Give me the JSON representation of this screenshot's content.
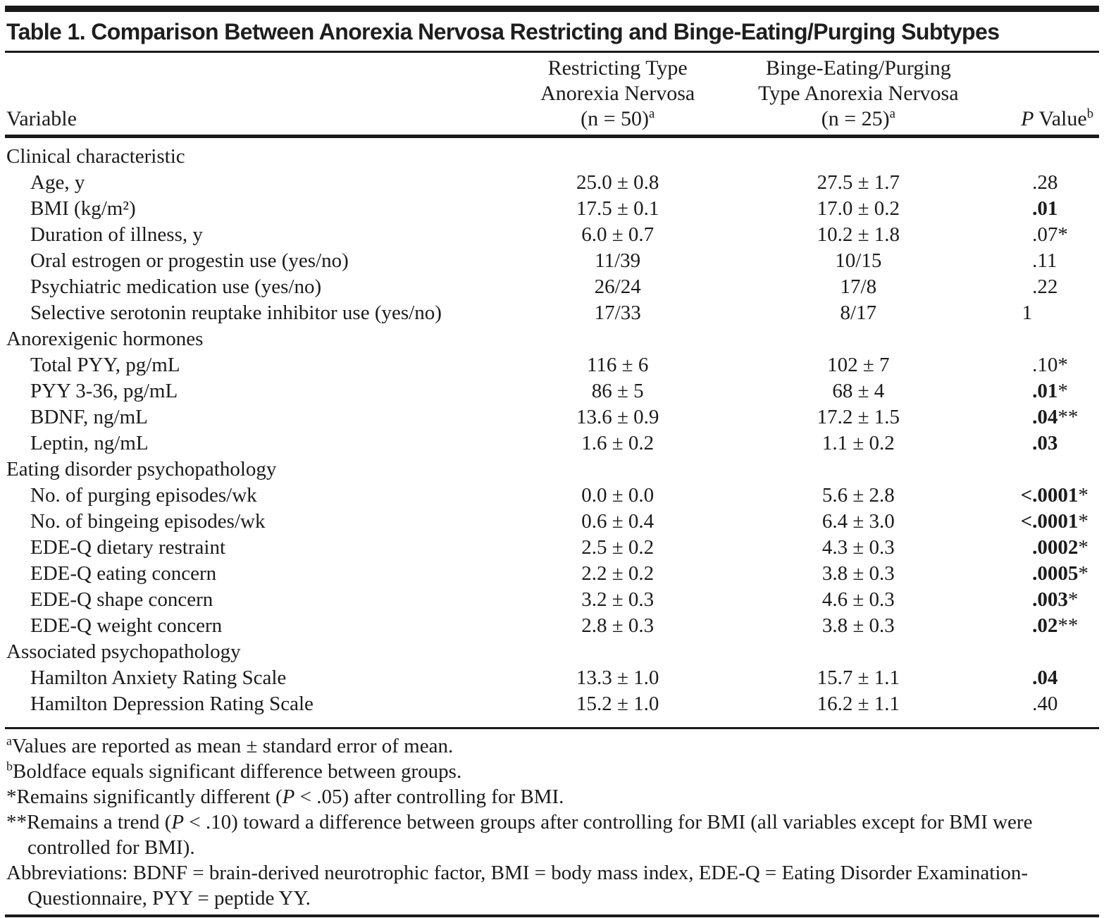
{
  "title": "Table 1. Comparison Between Anorexia Nervosa Restricting and Binge-Eating/Purging Subtypes",
  "header": {
    "variable": "Variable",
    "col2": {
      "line1": "Restricting Type",
      "line2": "Anorexia Nervosa",
      "n": "(n = 50)",
      "sup": "a"
    },
    "col3": {
      "line1": "Binge-Eating/Purging",
      "line2": "Type Anorexia Nervosa",
      "n": "(n = 25)",
      "sup": "a"
    },
    "p": {
      "italic": "P",
      "rest": " Value",
      "sup": "b"
    }
  },
  "rows": [
    {
      "type": "section",
      "label": "Clinical characteristic",
      "c1": "",
      "c2": "",
      "p": {
        "pre": "",
        "val": "",
        "stars": "",
        "bold": false
      }
    },
    {
      "type": "data",
      "label": "Age, y",
      "c1": "25.0 ± 0.8",
      "c2": "27.5 ± 1.7",
      "p": {
        "pre": "",
        "val": ".28",
        "stars": "",
        "bold": false
      }
    },
    {
      "type": "data",
      "label": "BMI (kg/m²)",
      "c1": "17.5 ± 0.1",
      "c2": "17.0 ± 0.2",
      "p": {
        "pre": "",
        "val": ".01",
        "stars": "",
        "bold": true
      }
    },
    {
      "type": "data",
      "label": "Duration of illness, y",
      "c1": "6.0 ± 0.7",
      "c2": "10.2 ± 1.8",
      "p": {
        "pre": "",
        "val": ".07",
        "stars": "*",
        "bold": false
      }
    },
    {
      "type": "data",
      "label": "Oral estrogen or progestin use (yes/no)",
      "c1": "11/39",
      "c2": "10/15",
      "p": {
        "pre": "",
        "val": ".11",
        "stars": "",
        "bold": false
      }
    },
    {
      "type": "data",
      "label": "Psychiatric medication use (yes/no)",
      "c1": "26/24",
      "c2": "17/8",
      "p": {
        "pre": "",
        "val": ".22",
        "stars": "",
        "bold": false
      }
    },
    {
      "type": "data",
      "label": "Selective serotonin reuptake inhibitor use (yes/no)",
      "c1": "17/33",
      "c2": "8/17",
      "p": {
        "pre": "1",
        "val": "",
        "stars": "",
        "bold": false
      }
    },
    {
      "type": "section",
      "label": "Anorexigenic hormones",
      "c1": "",
      "c2": "",
      "p": {
        "pre": "",
        "val": "",
        "stars": "",
        "bold": false
      }
    },
    {
      "type": "data",
      "label": "Total PYY, pg/mL",
      "c1": "116 ± 6",
      "c2": "102 ± 7",
      "p": {
        "pre": "",
        "val": ".10",
        "stars": "*",
        "bold": false
      }
    },
    {
      "type": "data",
      "label": "PYY 3-36, pg/mL",
      "c1": "86 ± 5",
      "c2": "68 ± 4",
      "p": {
        "pre": "",
        "val": ".01",
        "stars": "*",
        "bold": true
      }
    },
    {
      "type": "data",
      "label": "BDNF, ng/mL",
      "c1": "13.6 ± 0.9",
      "c2": "17.2 ± 1.5",
      "p": {
        "pre": "",
        "val": ".04",
        "stars": "**",
        "bold": true
      }
    },
    {
      "type": "data",
      "label": "Leptin, ng/mL",
      "c1": "1.6 ± 0.2",
      "c2": "1.1 ± 0.2",
      "p": {
        "pre": "",
        "val": ".03",
        "stars": "",
        "bold": true
      }
    },
    {
      "type": "section",
      "label": "Eating disorder psychopathology",
      "c1": "",
      "c2": "",
      "p": {
        "pre": "",
        "val": "",
        "stars": "",
        "bold": false
      }
    },
    {
      "type": "data",
      "label": "No. of purging episodes/wk",
      "c1": "0.0 ± 0.0",
      "c2": "5.6 ± 2.8",
      "p": {
        "pre": "<",
        "val": ".0001",
        "stars": "*",
        "bold": true
      }
    },
    {
      "type": "data",
      "label": "No. of bingeing episodes/wk",
      "c1": "0.6 ± 0.4",
      "c2": "6.4 ± 3.0",
      "p": {
        "pre": "<",
        "val": ".0001",
        "stars": "*",
        "bold": true
      }
    },
    {
      "type": "data",
      "label": "EDE-Q dietary restraint",
      "c1": "2.5 ± 0.2",
      "c2": "4.3 ± 0.3",
      "p": {
        "pre": "",
        "val": ".0002",
        "stars": "*",
        "bold": true
      }
    },
    {
      "type": "data",
      "label": "EDE-Q eating concern",
      "c1": "2.2 ± 0.2",
      "c2": "3.8 ± 0.3",
      "p": {
        "pre": "",
        "val": ".0005",
        "stars": "*",
        "bold": true
      }
    },
    {
      "type": "data",
      "label": "EDE-Q shape concern",
      "c1": "3.2 ± 0.3",
      "c2": "4.6 ± 0.3",
      "p": {
        "pre": "",
        "val": ".003",
        "stars": "*",
        "bold": true
      }
    },
    {
      "type": "data",
      "label": "EDE-Q weight concern",
      "c1": "2.8 ± 0.3",
      "c2": "3.8 ± 0.3",
      "p": {
        "pre": "",
        "val": ".02",
        "stars": "**",
        "bold": true
      }
    },
    {
      "type": "section",
      "label": "Associated psychopathology",
      "c1": "",
      "c2": "",
      "p": {
        "pre": "",
        "val": "",
        "stars": "",
        "bold": false
      }
    },
    {
      "type": "data",
      "label": "Hamilton Anxiety Rating Scale",
      "c1": "13.3 ± 1.0",
      "c2": "15.7 ± 1.1",
      "p": {
        "pre": "",
        "val": ".04",
        "stars": "",
        "bold": true
      }
    },
    {
      "type": "data",
      "label": "Hamilton Depression Rating Scale",
      "c1": "15.2 ± 1.0",
      "c2": "16.2 ± 1.1",
      "p": {
        "pre": "",
        "val": ".40",
        "stars": "",
        "bold": false
      }
    }
  ],
  "footnotes": [
    {
      "sup": "a",
      "text": "Values are reported as mean ± standard error of mean."
    },
    {
      "sup": "b",
      "text": "Boldface equals significant difference between groups."
    },
    {
      "pre": "*Remains significantly different (",
      "italic": "P",
      "post": " < .05) after controlling for BMI."
    },
    {
      "pre": "**Remains a trend (",
      "italic": "P",
      "post": " < .10) toward a difference between groups after controlling for BMI (all variables except for BMI were controlled for BMI)."
    },
    {
      "text": "Abbreviations: BDNF = brain-derived neurotrophic factor, BMI = body mass index, EDE-Q = Eating Disorder Examination-Questionnaire, PYY = peptide YY."
    }
  ]
}
